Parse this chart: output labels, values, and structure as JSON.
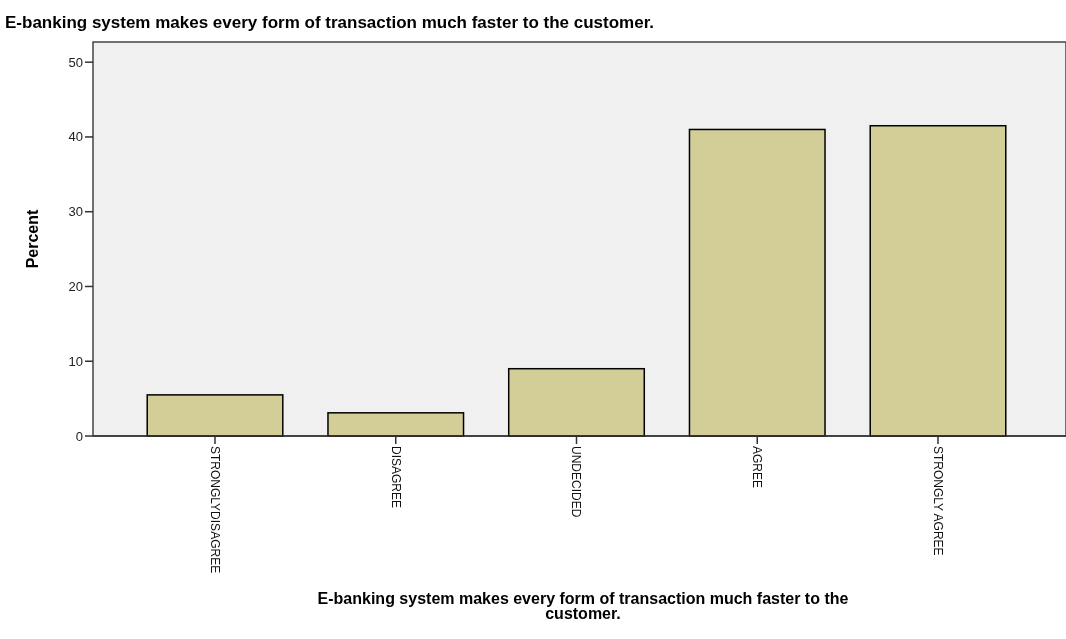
{
  "chart_data": {
    "type": "bar",
    "title": "E-banking system makes every form of transaction much faster to the customer.",
    "xlabel": "E-banking system makes every form of transaction much faster to the customer.",
    "ylabel": "Percent",
    "categories": [
      "STRONGLYDISAGREE",
      "DISAGREE",
      "UNDECIDED",
      "AGREE",
      "STRONGLY AGREE"
    ],
    "values": [
      5.5,
      3.1,
      9.0,
      41.0,
      41.5
    ],
    "color": "#d3ce97",
    "ylim": [
      0,
      52.7
    ],
    "yticks": [
      0,
      10,
      20,
      30,
      40,
      50
    ]
  }
}
